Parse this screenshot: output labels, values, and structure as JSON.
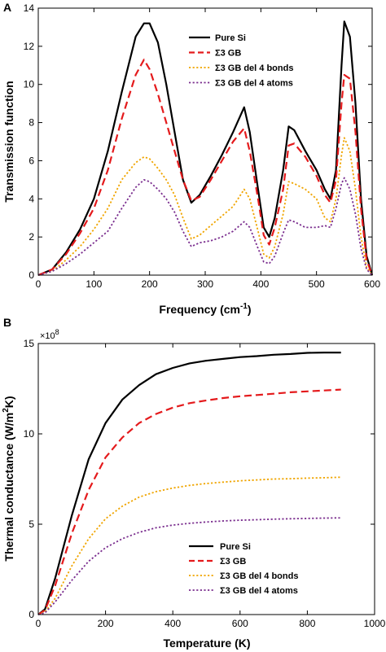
{
  "chart_data": [
    {
      "panel": "A",
      "type": "line",
      "xlabel": "Frequency (cm",
      "xlabel_sup": "-1",
      "xlabel_end": ")",
      "ylabel": "Transmission function",
      "xlim": [
        0,
        600
      ],
      "ylim": [
        0,
        14
      ],
      "xticks": [
        0,
        100,
        200,
        300,
        400,
        500,
        600
      ],
      "yticks": [
        0,
        2,
        4,
        6,
        8,
        10,
        12,
        14
      ],
      "legend_position": "top-right",
      "grid": false,
      "series": [
        {
          "name": "Pure Si",
          "color": "#000000",
          "style": "solid",
          "x": [
            0,
            25,
            50,
            75,
            100,
            125,
            150,
            175,
            190,
            200,
            215,
            230,
            245,
            260,
            275,
            290,
            310,
            330,
            350,
            370,
            380,
            395,
            405,
            415,
            425,
            440,
            450,
            460,
            480,
            500,
            515,
            525,
            535,
            545,
            550,
            560,
            570,
            580,
            590,
            600
          ],
          "y": [
            0,
            0.3,
            1.2,
            2.4,
            4.0,
            6.5,
            9.6,
            12.5,
            13.2,
            13.2,
            12.2,
            10.0,
            7.5,
            5.0,
            3.8,
            4.2,
            5.2,
            6.3,
            7.5,
            8.8,
            7.5,
            4.5,
            2.5,
            2.0,
            3.0,
            5.5,
            7.8,
            7.6,
            6.5,
            5.5,
            4.5,
            4.0,
            5.5,
            11.0,
            13.3,
            12.5,
            9.0,
            4.0,
            1.0,
            0
          ],
          "linewidth": 2.2
        },
        {
          "name": "Σ3 GB",
          "color": "#e41a1c",
          "style": "dash",
          "x": [
            0,
            25,
            50,
            75,
            100,
            125,
            150,
            175,
            190,
            200,
            215,
            230,
            245,
            260,
            275,
            290,
            310,
            330,
            350,
            370,
            380,
            395,
            405,
            415,
            425,
            440,
            450,
            460,
            480,
            500,
            515,
            525,
            535,
            545,
            550,
            560,
            570,
            580,
            590,
            600
          ],
          "y": [
            0,
            0.3,
            1.1,
            2.2,
            3.5,
            5.5,
            8.2,
            10.5,
            11.3,
            10.8,
            9.5,
            8.0,
            6.5,
            5.0,
            3.9,
            4.1,
            5.0,
            6.0,
            7.0,
            7.7,
            6.5,
            4.0,
            2.1,
            1.6,
            2.5,
            4.5,
            6.8,
            6.9,
            6.2,
            5.2,
            4.2,
            3.8,
            5.0,
            9.0,
            10.5,
            10.3,
            7.5,
            3.5,
            0.8,
            0
          ],
          "linewidth": 2.2
        },
        {
          "name": "Σ3 GB del 4 bonds",
          "color": "#f0a500",
          "style": "dot",
          "x": [
            0,
            25,
            50,
            75,
            100,
            125,
            150,
            175,
            190,
            200,
            215,
            230,
            245,
            260,
            275,
            290,
            310,
            330,
            350,
            370,
            380,
            395,
            405,
            415,
            425,
            440,
            450,
            460,
            480,
            500,
            515,
            525,
            535,
            545,
            550,
            560,
            570,
            580,
            590,
            600
          ],
          "y": [
            0,
            0.2,
            0.8,
            1.5,
            2.4,
            3.5,
            5.0,
            5.9,
            6.2,
            6.1,
            5.6,
            5.0,
            4.2,
            3.0,
            1.9,
            2.1,
            2.6,
            3.1,
            3.6,
            4.5,
            4.0,
            2.3,
            1.1,
            0.9,
            1.5,
            3.2,
            4.9,
            4.8,
            4.5,
            4.0,
            3.0,
            2.8,
            4.0,
            6.3,
            7.2,
            6.5,
            4.5,
            2.0,
            0.4,
            0
          ],
          "linewidth": 1.8
        },
        {
          "name": "Σ3 GB del 4 atoms",
          "color": "#7b2f8f",
          "style": "dot",
          "x": [
            0,
            25,
            50,
            75,
            100,
            125,
            150,
            175,
            190,
            200,
            215,
            230,
            245,
            260,
            275,
            290,
            310,
            330,
            350,
            370,
            380,
            395,
            405,
            415,
            425,
            440,
            450,
            460,
            480,
            500,
            515,
            525,
            535,
            545,
            550,
            560,
            570,
            580,
            590,
            600
          ],
          "y": [
            0,
            0.2,
            0.6,
            1.1,
            1.7,
            2.3,
            3.5,
            4.6,
            5.0,
            4.9,
            4.5,
            4.0,
            3.3,
            2.3,
            1.5,
            1.7,
            1.8,
            2.0,
            2.3,
            2.8,
            2.5,
            1.4,
            0.7,
            0.6,
            1.0,
            2.2,
            2.9,
            2.8,
            2.5,
            2.5,
            2.6,
            2.5,
            3.5,
            4.8,
            5.1,
            4.5,
            3.2,
            1.4,
            0.3,
            0
          ],
          "linewidth": 1.8
        }
      ]
    },
    {
      "panel": "B",
      "type": "line",
      "xlabel": "Temperature (K)",
      "ylabel": "Thermal conductance (W/m",
      "ylabel_sup": "2",
      "ylabel_end": "K)",
      "y_exponent": "×10",
      "y_exponent_sup": "8",
      "xlim": [
        0,
        1000
      ],
      "ylim": [
        0,
        15
      ],
      "xticks": [
        0,
        200,
        400,
        600,
        800,
        1000
      ],
      "yticks": [
        0,
        5,
        10,
        15
      ],
      "legend_position": "bottom-right",
      "grid": false,
      "series": [
        {
          "name": "Pure Si",
          "color": "#000000",
          "style": "solid",
          "x": [
            0,
            20,
            50,
            100,
            150,
            200,
            250,
            300,
            350,
            400,
            450,
            500,
            550,
            600,
            650,
            700,
            750,
            800,
            850,
            900
          ],
          "y": [
            0,
            0.3,
            2.0,
            5.5,
            8.6,
            10.6,
            11.9,
            12.7,
            13.3,
            13.65,
            13.9,
            14.05,
            14.15,
            14.25,
            14.3,
            14.38,
            14.42,
            14.48,
            14.5,
            14.5
          ],
          "linewidth": 2.2
        },
        {
          "name": "Σ3 GB",
          "color": "#e41a1c",
          "style": "dash",
          "x": [
            0,
            20,
            50,
            100,
            150,
            200,
            250,
            300,
            350,
            400,
            450,
            500,
            550,
            600,
            650,
            700,
            750,
            800,
            850,
            900
          ],
          "y": [
            0,
            0.25,
            1.6,
            4.5,
            6.9,
            8.7,
            9.8,
            10.6,
            11.1,
            11.45,
            11.7,
            11.85,
            11.98,
            12.08,
            12.15,
            12.22,
            12.3,
            12.35,
            12.4,
            12.45
          ],
          "linewidth": 2.2
        },
        {
          "name": "Σ3 GB del 4 bonds",
          "color": "#f0a500",
          "style": "dot",
          "x": [
            0,
            20,
            50,
            100,
            150,
            200,
            250,
            300,
            350,
            400,
            450,
            500,
            550,
            600,
            650,
            700,
            750,
            800,
            850,
            900
          ],
          "y": [
            0,
            0.15,
            0.9,
            2.7,
            4.2,
            5.3,
            6.0,
            6.5,
            6.8,
            7.0,
            7.15,
            7.25,
            7.33,
            7.4,
            7.45,
            7.5,
            7.52,
            7.55,
            7.57,
            7.6
          ],
          "linewidth": 1.8
        },
        {
          "name": "Σ3 GB del 4 atoms",
          "color": "#7b2f8f",
          "style": "dot",
          "x": [
            0,
            20,
            50,
            100,
            150,
            200,
            250,
            300,
            350,
            400,
            450,
            500,
            550,
            600,
            650,
            700,
            750,
            800,
            850,
            900
          ],
          "y": [
            0,
            0.1,
            0.7,
            1.9,
            2.95,
            3.7,
            4.2,
            4.55,
            4.8,
            4.95,
            5.05,
            5.12,
            5.18,
            5.22,
            5.25,
            5.28,
            5.3,
            5.32,
            5.34,
            5.35
          ],
          "linewidth": 1.8
        }
      ]
    }
  ]
}
